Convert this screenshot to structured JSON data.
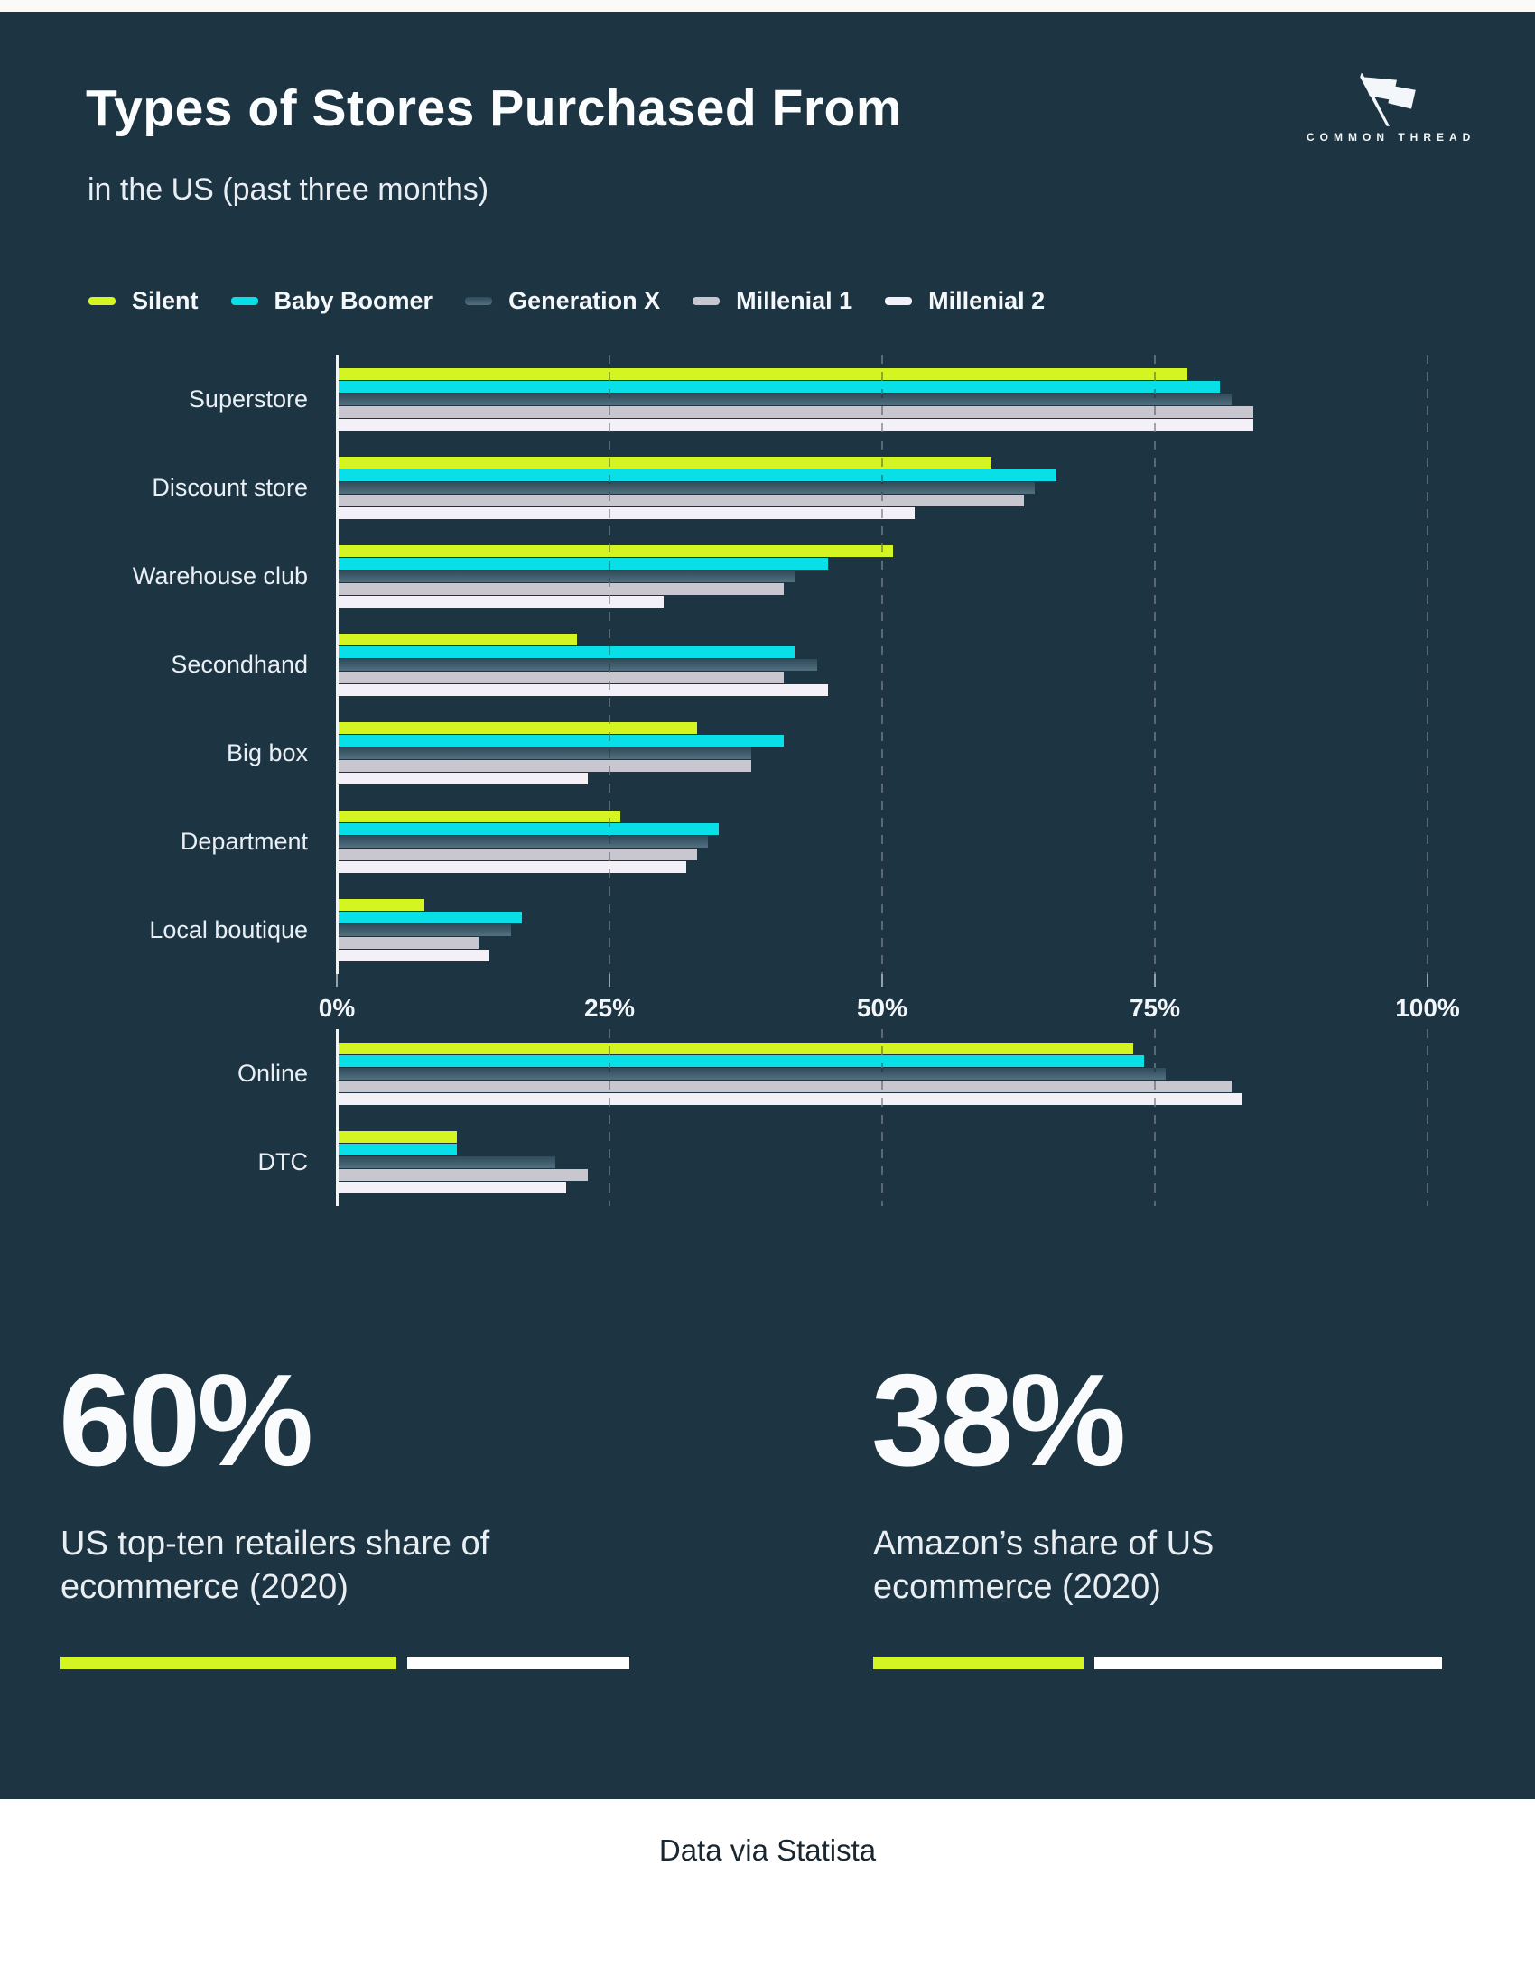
{
  "header": {
    "title": "Types of Stores Purchased From",
    "subtitle": "in the US (past three months)"
  },
  "logo": {
    "text": "COMMON THREAD",
    "icon": "flag-needle-icon"
  },
  "colors": {
    "background": "#1d3443",
    "accent_green": "#d5f522",
    "axis_line": "#f2f5f7",
    "gridline": "#84939e"
  },
  "chart_data": [
    {
      "type": "bar",
      "orientation": "horizontal",
      "unit": "%",
      "xlim": [
        0,
        100
      ],
      "x_ticks": [
        "0%",
        "25%",
        "50%",
        "75%",
        "100%"
      ],
      "grid": "dashed-vertical",
      "legend_position": "top",
      "categories": [
        "Superstore",
        "Discount store",
        "Warehouse club",
        "Secondhand",
        "Big box",
        "Department",
        "Local boutique"
      ],
      "series": [
        {
          "name": "Silent",
          "color": "#d5f522",
          "values": [
            78,
            60,
            51,
            22,
            33,
            26,
            8
          ]
        },
        {
          "name": "Baby Boomer",
          "color": "#09dfe7",
          "values": [
            81,
            66,
            45,
            42,
            41,
            35,
            17
          ]
        },
        {
          "name": "Generation X",
          "color": "#41601f-gradient",
          "gradient": [
            "#304b5b",
            "#52707f"
          ],
          "values": [
            82,
            64,
            42,
            44,
            38,
            34,
            16
          ]
        },
        {
          "name": "Millenial 1",
          "color": "#c8c7cf",
          "values": [
            84,
            63,
            41,
            41,
            38,
            33,
            13
          ]
        },
        {
          "name": "Millenial 2",
          "color": "#f3f0f7",
          "values": [
            84,
            53,
            30,
            45,
            23,
            32,
            14
          ]
        }
      ]
    },
    {
      "type": "bar",
      "orientation": "horizontal",
      "unit": "%",
      "xlim": [
        0,
        100
      ],
      "grid": "dashed-vertical",
      "categories": [
        "Online",
        "DTC"
      ],
      "series": [
        {
          "name": "Silent",
          "color": "#d5f522",
          "values": [
            73,
            11
          ]
        },
        {
          "name": "Baby Boomer",
          "color": "#09dfe7",
          "values": [
            74,
            11
          ]
        },
        {
          "name": "Generation X",
          "color": "#41601f-gradient",
          "gradient": [
            "#304b5b",
            "#52707f"
          ],
          "values": [
            76,
            20
          ]
        },
        {
          "name": "Millenial 1",
          "color": "#c8c7cf",
          "values": [
            82,
            23
          ]
        },
        {
          "name": "Millenial 2",
          "color": "#f3f0f7",
          "values": [
            83,
            21
          ]
        }
      ]
    }
  ],
  "stats": [
    {
      "value": "60%",
      "pct": 60,
      "caption": "US top-ten retailers share of ecommerce (2020)",
      "fill_color": "#d5f522",
      "rest_color": "#ffffff"
    },
    {
      "value": "38%",
      "pct": 38,
      "caption": "Amazon’s share of US ecommerce (2020)",
      "fill_color": "#d5f522",
      "rest_color": "#ffffff"
    }
  ],
  "footer": {
    "credit": "Data via Statista"
  }
}
